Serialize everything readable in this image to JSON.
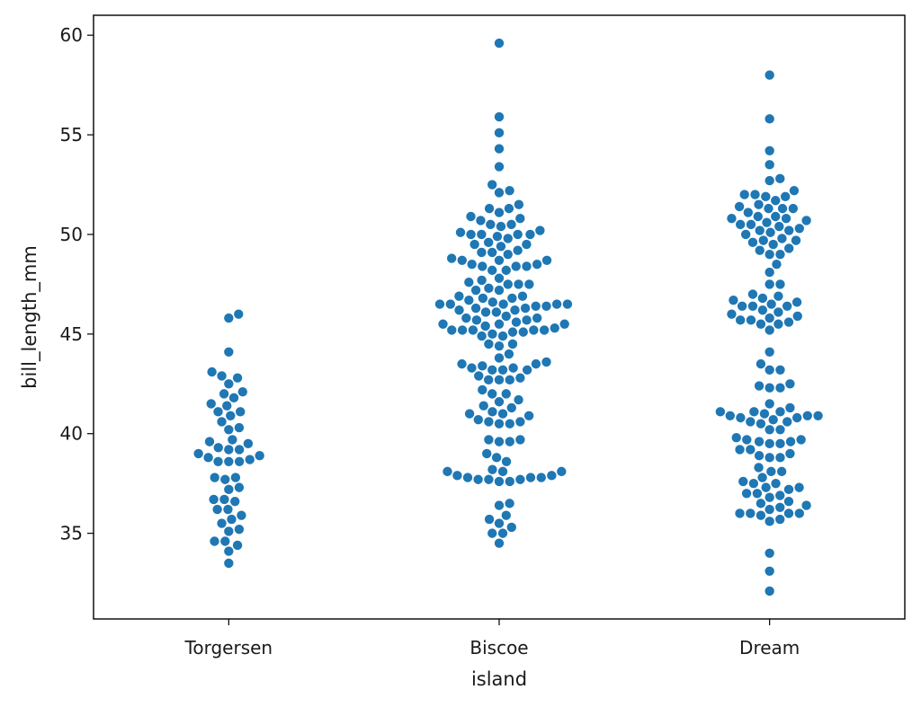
{
  "chart_data": {
    "type": "scatter",
    "subtype": "swarm",
    "title": "",
    "xlabel": "island",
    "ylabel": "bill_length_mm",
    "categories": [
      "Torgersen",
      "Biscoe",
      "Dream"
    ],
    "ylim": [
      30.7,
      61.0
    ],
    "yticks": [
      35,
      40,
      45,
      50,
      55,
      60
    ],
    "grid": false,
    "marker_color": "#1f77b4",
    "series": [
      {
        "category": "Torgersen",
        "values": [
          46.0,
          45.8,
          44.1,
          43.1,
          42.9,
          42.8,
          42.5,
          42.1,
          42.0,
          41.8,
          41.5,
          41.4,
          41.1,
          41.1,
          40.9,
          40.6,
          40.3,
          40.2,
          39.7,
          39.6,
          39.5,
          39.3,
          39.2,
          39.2,
          39.0,
          38.9,
          38.8,
          38.7,
          38.6,
          38.6,
          38.6,
          37.8,
          37.8,
          37.7,
          37.3,
          37.2,
          36.7,
          36.7,
          36.6,
          36.2,
          36.2,
          35.9,
          35.7,
          35.5,
          35.2,
          35.1,
          34.6,
          34.6,
          34.4,
          34.1,
          33.5
        ]
      },
      {
        "category": "Biscoe",
        "values": [
          59.6,
          55.9,
          55.1,
          54.3,
          53.4,
          52.5,
          52.2,
          52.1,
          51.5,
          51.3,
          51.3,
          51.1,
          50.9,
          50.8,
          50.7,
          50.5,
          50.5,
          50.4,
          50.2,
          50.1,
          50.0,
          50.0,
          50.0,
          50.0,
          49.9,
          49.8,
          49.6,
          49.5,
          49.5,
          49.4,
          49.2,
          49.1,
          49.1,
          49.0,
          48.8,
          48.7,
          48.7,
          48.7,
          48.5,
          48.5,
          48.4,
          48.4,
          48.4,
          48.2,
          48.2,
          47.8,
          47.7,
          47.6,
          47.5,
          47.5,
          47.5,
          47.3,
          47.2,
          47.2,
          46.9,
          46.9,
          46.8,
          46.8,
          46.7,
          46.6,
          46.5,
          46.5,
          46.5,
          46.5,
          46.5,
          46.4,
          46.4,
          46.3,
          46.3,
          46.2,
          46.2,
          46.1,
          46.1,
          45.9,
          45.8,
          45.8,
          45.7,
          45.7,
          45.6,
          45.5,
          45.5,
          45.5,
          45.4,
          45.3,
          45.2,
          45.2,
          45.2,
          45.2,
          45.2,
          45.1,
          45.1,
          45.0,
          44.9,
          44.9,
          44.5,
          44.5,
          44.4,
          44.0,
          43.8,
          43.6,
          43.5,
          43.5,
          43.4,
          43.3,
          43.3,
          43.2,
          43.2,
          43.2,
          42.9,
          42.8,
          42.7,
          42.7,
          42.7,
          42.2,
          42.0,
          42.0,
          41.7,
          41.6,
          41.4,
          41.3,
          41.1,
          41.0,
          41.0,
          40.9,
          40.7,
          40.6,
          40.6,
          40.5,
          40.5,
          39.7,
          39.7,
          39.6,
          39.6,
          39.0,
          38.8,
          38.6,
          38.2,
          38.1,
          38.1,
          38.1,
          37.9,
          37.9,
          37.8,
          37.8,
          37.8,
          37.7,
          37.7,
          37.7,
          37.6,
          37.6,
          36.5,
          36.4,
          35.9,
          35.7,
          35.5,
          35.3,
          35.0,
          35.0,
          34.5
        ]
      },
      {
        "category": "Dream",
        "values": [
          58.0,
          55.8,
          54.2,
          53.5,
          52.8,
          52.7,
          52.2,
          52.0,
          52.0,
          51.9,
          51.9,
          51.7,
          51.5,
          51.4,
          51.3,
          51.3,
          51.3,
          51.1,
          50.9,
          50.9,
          50.8,
          50.8,
          50.7,
          50.6,
          50.5,
          50.5,
          50.4,
          50.3,
          50.2,
          50.2,
          50.1,
          50.0,
          49.8,
          49.7,
          49.7,
          49.6,
          49.5,
          49.3,
          49.2,
          49.0,
          49.0,
          48.5,
          48.1,
          47.5,
          47.5,
          47.0,
          46.9,
          46.8,
          46.7,
          46.6,
          46.5,
          46.4,
          46.4,
          46.4,
          46.2,
          46.1,
          46.0,
          45.9,
          45.8,
          45.7,
          45.7,
          45.6,
          45.5,
          45.5,
          45.2,
          44.1,
          43.5,
          43.2,
          43.2,
          42.5,
          42.4,
          42.3,
          42.3,
          41.5,
          41.3,
          41.1,
          41.1,
          41.1,
          41.0,
          40.9,
          40.9,
          40.9,
          40.8,
          40.8,
          40.7,
          40.6,
          40.6,
          40.5,
          40.2,
          40.2,
          39.8,
          39.7,
          39.7,
          39.6,
          39.6,
          39.5,
          39.5,
          39.2,
          39.2,
          39.0,
          38.9,
          38.8,
          38.8,
          38.3,
          38.1,
          38.1,
          37.8,
          37.6,
          37.5,
          37.5,
          37.3,
          37.3,
          37.2,
          37.0,
          37.0,
          36.9,
          36.8,
          36.6,
          36.5,
          36.4,
          36.3,
          36.2,
          36.0,
          36.0,
          36.0,
          36.0,
          35.9,
          35.7,
          35.6,
          34.0,
          33.1,
          32.1
        ]
      }
    ]
  }
}
